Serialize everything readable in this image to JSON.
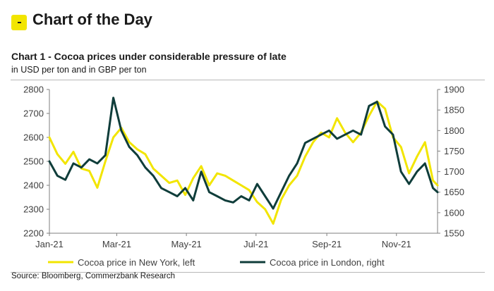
{
  "header": {
    "title": "Chart of the Day",
    "badge_icon": "minus-icon",
    "badge_color": "#f2e500"
  },
  "chart_data": {
    "type": "line",
    "title": "Chart 1 - Cocoa prices under considerable pressure of late",
    "subtitle": "in USD per ton and in GBP per ton",
    "x_tick_labels": [
      "Jan-21",
      "Mar-21",
      "May-21",
      "Jul-21",
      "Sep-21",
      "Nov-21"
    ],
    "x_range": [
      "2021-01-01",
      "2021-12-07"
    ],
    "y_left": {
      "ticks": [
        2200,
        2300,
        2400,
        2500,
        2600,
        2700,
        2800
      ],
      "range": [
        2200,
        2800
      ]
    },
    "y_right": {
      "ticks": [
        1550,
        1600,
        1650,
        1700,
        1750,
        1800,
        1850,
        1900
      ],
      "range": [
        1550,
        1900
      ]
    },
    "series": [
      {
        "name": "Cocoa price in New York, left",
        "axis": "left",
        "color": "#f2e500",
        "points": [
          [
            "2021-01-01",
            2600
          ],
          [
            "2021-01-08",
            2530
          ],
          [
            "2021-01-15",
            2490
          ],
          [
            "2021-01-22",
            2540
          ],
          [
            "2021-01-29",
            2470
          ],
          [
            "2021-02-05",
            2460
          ],
          [
            "2021-02-12",
            2390
          ],
          [
            "2021-02-19",
            2500
          ],
          [
            "2021-02-26",
            2600
          ],
          [
            "2021-03-05",
            2640
          ],
          [
            "2021-03-12",
            2580
          ],
          [
            "2021-03-19",
            2550
          ],
          [
            "2021-03-26",
            2530
          ],
          [
            "2021-04-02",
            2470
          ],
          [
            "2021-04-09",
            2440
          ],
          [
            "2021-04-16",
            2410
          ],
          [
            "2021-04-23",
            2420
          ],
          [
            "2021-04-30",
            2360
          ],
          [
            "2021-05-07",
            2430
          ],
          [
            "2021-05-14",
            2480
          ],
          [
            "2021-05-21",
            2400
          ],
          [
            "2021-05-28",
            2450
          ],
          [
            "2021-06-04",
            2440
          ],
          [
            "2021-06-11",
            2420
          ],
          [
            "2021-06-18",
            2400
          ],
          [
            "2021-06-25",
            2380
          ],
          [
            "2021-07-02",
            2330
          ],
          [
            "2021-07-09",
            2300
          ],
          [
            "2021-07-16",
            2240
          ],
          [
            "2021-07-23",
            2340
          ],
          [
            "2021-07-30",
            2400
          ],
          [
            "2021-08-06",
            2440
          ],
          [
            "2021-08-13",
            2520
          ],
          [
            "2021-08-20",
            2580
          ],
          [
            "2021-08-27",
            2620
          ],
          [
            "2021-09-03",
            2600
          ],
          [
            "2021-09-10",
            2680
          ],
          [
            "2021-09-17",
            2620
          ],
          [
            "2021-09-24",
            2580
          ],
          [
            "2021-10-01",
            2620
          ],
          [
            "2021-10-08",
            2690
          ],
          [
            "2021-10-15",
            2750
          ],
          [
            "2021-10-22",
            2720
          ],
          [
            "2021-10-29",
            2600
          ],
          [
            "2021-11-05",
            2560
          ],
          [
            "2021-11-12",
            2450
          ],
          [
            "2021-11-19",
            2520
          ],
          [
            "2021-11-26",
            2580
          ],
          [
            "2021-12-03",
            2420
          ],
          [
            "2021-12-07",
            2400
          ]
        ]
      },
      {
        "name": "Cocoa price in London, right",
        "axis": "right",
        "color": "#0f3d3a",
        "points": [
          [
            "2021-01-01",
            1725
          ],
          [
            "2021-01-08",
            1690
          ],
          [
            "2021-01-15",
            1680
          ],
          [
            "2021-01-22",
            1720
          ],
          [
            "2021-01-29",
            1710
          ],
          [
            "2021-02-05",
            1730
          ],
          [
            "2021-02-12",
            1720
          ],
          [
            "2021-02-19",
            1740
          ],
          [
            "2021-02-26",
            1880
          ],
          [
            "2021-03-05",
            1800
          ],
          [
            "2021-03-12",
            1760
          ],
          [
            "2021-03-19",
            1740
          ],
          [
            "2021-03-26",
            1710
          ],
          [
            "2021-04-02",
            1690
          ],
          [
            "2021-04-09",
            1660
          ],
          [
            "2021-04-16",
            1650
          ],
          [
            "2021-04-23",
            1640
          ],
          [
            "2021-04-30",
            1660
          ],
          [
            "2021-05-07",
            1630
          ],
          [
            "2021-05-14",
            1700
          ],
          [
            "2021-05-21",
            1650
          ],
          [
            "2021-05-28",
            1640
          ],
          [
            "2021-06-04",
            1630
          ],
          [
            "2021-06-11",
            1625
          ],
          [
            "2021-06-18",
            1640
          ],
          [
            "2021-06-25",
            1630
          ],
          [
            "2021-07-02",
            1670
          ],
          [
            "2021-07-09",
            1640
          ],
          [
            "2021-07-16",
            1610
          ],
          [
            "2021-07-23",
            1650
          ],
          [
            "2021-07-30",
            1690
          ],
          [
            "2021-08-06",
            1720
          ],
          [
            "2021-08-13",
            1770
          ],
          [
            "2021-08-20",
            1780
          ],
          [
            "2021-08-27",
            1790
          ],
          [
            "2021-09-03",
            1800
          ],
          [
            "2021-09-10",
            1780
          ],
          [
            "2021-09-17",
            1790
          ],
          [
            "2021-09-24",
            1800
          ],
          [
            "2021-10-01",
            1790
          ],
          [
            "2021-10-08",
            1860
          ],
          [
            "2021-10-15",
            1870
          ],
          [
            "2021-10-22",
            1810
          ],
          [
            "2021-10-29",
            1790
          ],
          [
            "2021-11-05",
            1700
          ],
          [
            "2021-11-12",
            1670
          ],
          [
            "2021-11-19",
            1700
          ],
          [
            "2021-11-26",
            1720
          ],
          [
            "2021-12-03",
            1660
          ],
          [
            "2021-12-07",
            1650
          ]
        ]
      }
    ],
    "legend_position": "bottom",
    "grid": false
  },
  "source": "Source: Bloomberg, Commerzbank Research"
}
